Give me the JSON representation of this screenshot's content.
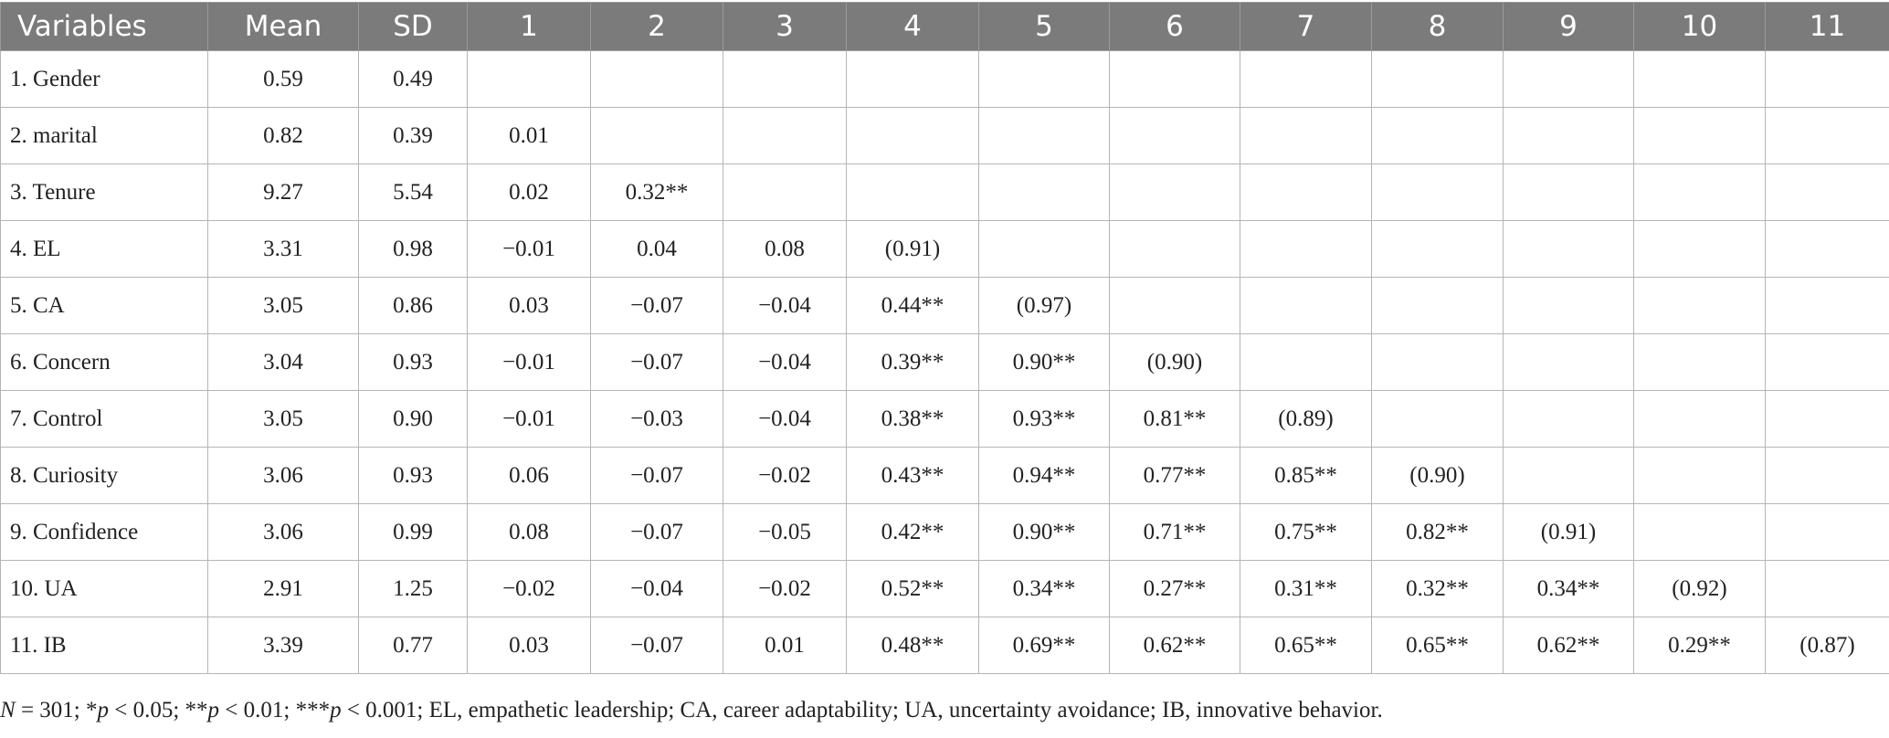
{
  "table": {
    "headers": [
      "Variables",
      "Mean",
      "SD",
      "1",
      "2",
      "3",
      "4",
      "5",
      "6",
      "7",
      "8",
      "9",
      "10",
      "11"
    ],
    "rows": [
      [
        "1. Gender",
        "0.59",
        "0.49",
        "",
        "",
        "",
        "",
        "",
        "",
        "",
        "",
        "",
        "",
        ""
      ],
      [
        "2. marital",
        "0.82",
        "0.39",
        "0.01",
        "",
        "",
        "",
        "",
        "",
        "",
        "",
        "",
        "",
        ""
      ],
      [
        "3. Tenure",
        "9.27",
        "5.54",
        "0.02",
        "0.32**",
        "",
        "",
        "",
        "",
        "",
        "",
        "",
        "",
        ""
      ],
      [
        "4. EL",
        "3.31",
        "0.98",
        "−0.01",
        "0.04",
        "0.08",
        "(0.91)",
        "",
        "",
        "",
        "",
        "",
        "",
        ""
      ],
      [
        "5. CA",
        "3.05",
        "0.86",
        "0.03",
        "−0.07",
        "−0.04",
        "0.44**",
        "(0.97)",
        "",
        "",
        "",
        "",
        "",
        ""
      ],
      [
        "6. Concern",
        "3.04",
        "0.93",
        "−0.01",
        "−0.07",
        "−0.04",
        "0.39**",
        "0.90**",
        "(0.90)",
        "",
        "",
        "",
        "",
        ""
      ],
      [
        "7. Control",
        "3.05",
        "0.90",
        "−0.01",
        "−0.03",
        "−0.04",
        "0.38**",
        "0.93**",
        "0.81**",
        "(0.89)",
        "",
        "",
        "",
        ""
      ],
      [
        "8. Curiosity",
        "3.06",
        "0.93",
        "0.06",
        "−0.07",
        "−0.02",
        "0.43**",
        "0.94**",
        "0.77**",
        "0.85**",
        "(0.90)",
        "",
        "",
        ""
      ],
      [
        "9. Confidence",
        "3.06",
        "0.99",
        "0.08",
        "−0.07",
        "−0.05",
        "0.42**",
        "0.90**",
        "0.71**",
        "0.75**",
        "0.82**",
        "(0.91)",
        "",
        ""
      ],
      [
        "10. UA",
        "2.91",
        "1.25",
        "−0.02",
        "−0.04",
        "−0.02",
        "0.52**",
        "0.34**",
        "0.27**",
        "0.31**",
        "0.32**",
        "0.34**",
        "(0.92)",
        ""
      ],
      [
        "11. IB",
        "3.39",
        "0.77",
        "0.03",
        "−0.07",
        "0.01",
        "0.48**",
        "0.69**",
        "0.62**",
        "0.65**",
        "0.65**",
        "0.62**",
        "0.29**",
        "(0.87)"
      ]
    ]
  },
  "note": {
    "n_symbol": "N",
    "n_rest": " = 301; *",
    "p1": "p",
    "p1_rest": " < 0.05; **",
    "p2": "p",
    "p2_rest": " < 0.01; ***",
    "p3": "p",
    "p3_rest": " < 0.001; EL, empathetic leadership; CA, career adaptability; UA, uncertainty avoidance; IB, innovative behavior."
  }
}
